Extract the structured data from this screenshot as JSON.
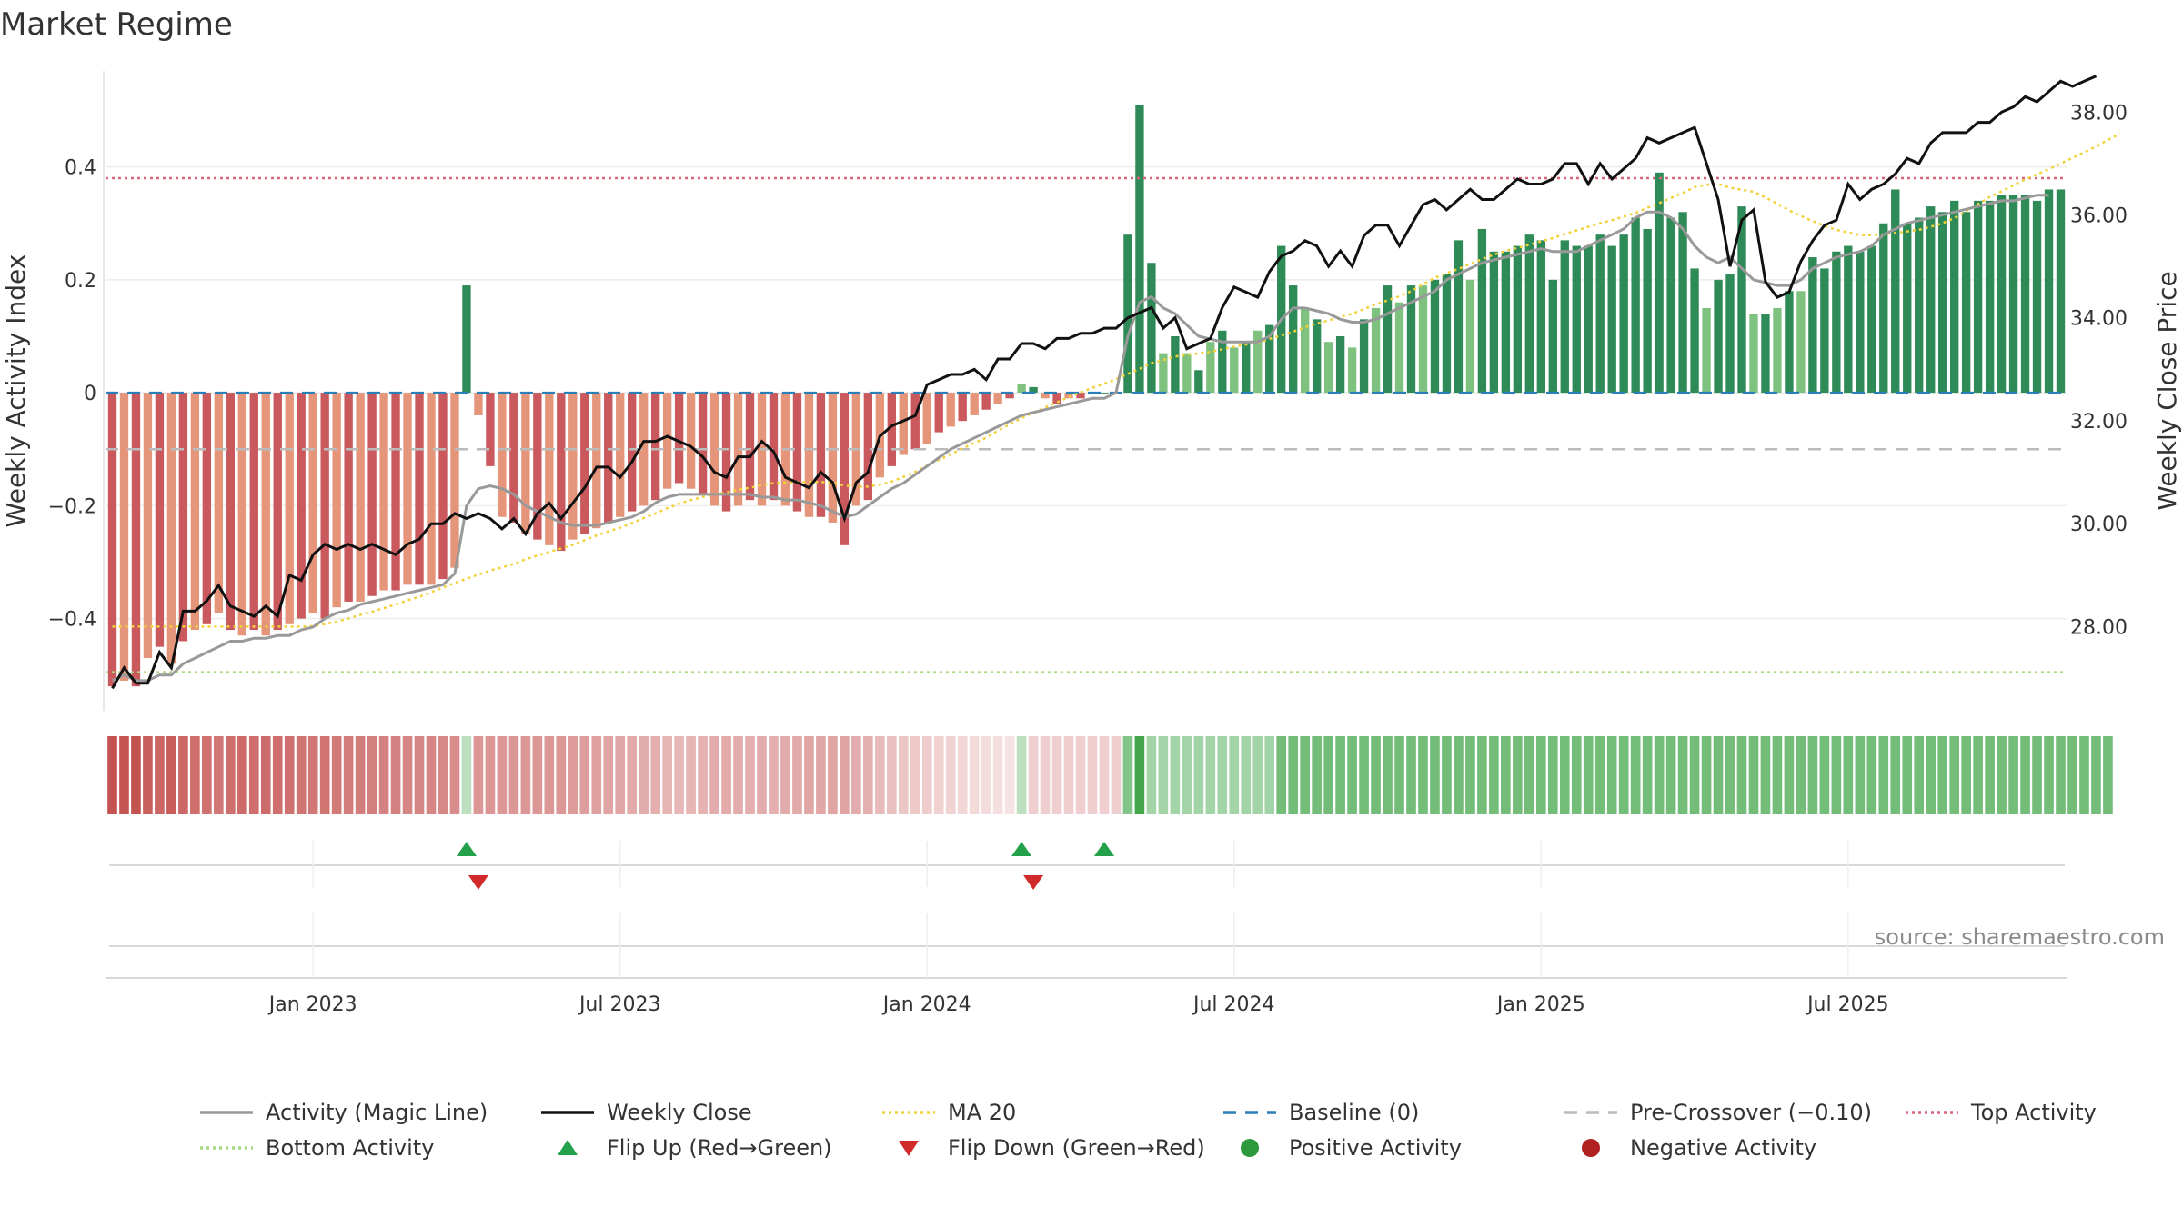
{
  "chart_data": {
    "type": "bar",
    "title": "Market Regime",
    "ylabel_left": "Weekly Activity Index",
    "ylabel_right": "Weekly Close Price",
    "source": "source: sharemaestro.com",
    "ylim_left": [
      -0.56,
      0.57
    ],
    "ylim_right": [
      26.4,
      38.8
    ],
    "left_ticks": [
      {
        "v": 0.4,
        "label": "0.4"
      },
      {
        "v": 0.2,
        "label": "0.2"
      },
      {
        "v": 0,
        "label": "0"
      },
      {
        "v": -0.2,
        "label": "−0.2"
      },
      {
        "v": -0.4,
        "label": "−0.4"
      }
    ],
    "right_ticks": [
      {
        "v": 38,
        "label": "38.00"
      },
      {
        "v": 36,
        "label": "36.00"
      },
      {
        "v": 34,
        "label": "34.00"
      },
      {
        "v": 32,
        "label": "32.00"
      },
      {
        "v": 30,
        "label": "30.00"
      },
      {
        "v": 28,
        "label": "28.00"
      }
    ],
    "x_ticks": [
      {
        "week": 17,
        "label": "Jan 2023"
      },
      {
        "week": 43,
        "label": "Jul 2023"
      },
      {
        "week": 69,
        "label": "Jan 2024"
      },
      {
        "week": 95,
        "label": "Jul 2024"
      },
      {
        "week": 121,
        "label": "Jan 2025"
      },
      {
        "week": 147,
        "label": "Jul 2025"
      }
    ],
    "reference_lines": {
      "baseline": 0,
      "pre_crossover": -0.1,
      "top_activity": 0.38,
      "bottom_activity": -0.495
    },
    "activity": [
      -0.52,
      -0.51,
      -0.52,
      -0.47,
      -0.45,
      -0.48,
      -0.44,
      -0.42,
      -0.41,
      -0.39,
      -0.42,
      -0.43,
      -0.42,
      -0.43,
      -0.42,
      -0.41,
      -0.4,
      -0.39,
      -0.4,
      -0.38,
      -0.37,
      -0.37,
      -0.36,
      -0.35,
      -0.35,
      -0.34,
      -0.34,
      -0.34,
      -0.33,
      -0.31,
      0.19,
      -0.04,
      -0.13,
      -0.22,
      -0.23,
      -0.25,
      -0.26,
      -0.27,
      -0.28,
      -0.26,
      -0.25,
      -0.24,
      -0.23,
      -0.22,
      -0.21,
      -0.2,
      -0.19,
      -0.17,
      -0.16,
      -0.17,
      -0.18,
      -0.2,
      -0.21,
      -0.2,
      -0.19,
      -0.2,
      -0.19,
      -0.2,
      -0.21,
      -0.22,
      -0.22,
      -0.23,
      -0.27,
      -0.2,
      -0.19,
      -0.15,
      -0.13,
      -0.11,
      -0.1,
      -0.09,
      -0.07,
      -0.06,
      -0.05,
      -0.04,
      -0.03,
      -0.02,
      -0.01,
      0.015,
      0.01,
      -0.01,
      -0.02,
      -0.01,
      -0.01,
      0.0,
      0.0,
      0.0,
      0.28,
      0.51,
      0.23,
      0.07,
      0.1,
      0.07,
      0.04,
      0.09,
      0.11,
      0.08,
      0.09,
      0.11,
      0.12,
      0.26,
      0.19,
      0.15,
      0.13,
      0.09,
      0.1,
      0.08,
      0.13,
      0.15,
      0.19,
      0.16,
      0.19,
      0.19,
      0.2,
      0.21,
      0.27,
      0.2,
      0.29,
      0.25,
      0.25,
      0.26,
      0.28,
      0.27,
      0.2,
      0.27,
      0.26,
      0.26,
      0.28,
      0.26,
      0.28,
      0.31,
      0.29,
      0.39,
      0.31,
      0.32,
      0.22,
      0.15,
      0.2,
      0.21,
      0.33,
      0.14,
      0.14,
      0.15,
      0.18,
      0.18,
      0.24,
      0.22,
      0.25,
      0.26,
      0.25,
      0.26,
      0.3,
      0.36,
      0.3,
      0.31,
      0.33,
      0.32,
      0.34,
      0.32,
      0.34,
      0.34,
      0.35,
      0.35,
      0.35,
      0.34,
      0.36,
      0.36
    ],
    "magic_line": [
      -0.51,
      -0.5,
      -0.51,
      -0.51,
      -0.5,
      -0.5,
      -0.48,
      -0.47,
      -0.46,
      -0.45,
      -0.44,
      -0.44,
      -0.435,
      -0.435,
      -0.43,
      -0.43,
      -0.42,
      -0.415,
      -0.4,
      -0.39,
      -0.385,
      -0.375,
      -0.37,
      -0.365,
      -0.36,
      -0.355,
      -0.35,
      -0.345,
      -0.34,
      -0.32,
      -0.2,
      -0.17,
      -0.165,
      -0.17,
      -0.18,
      -0.2,
      -0.21,
      -0.22,
      -0.23,
      -0.235,
      -0.235,
      -0.235,
      -0.23,
      -0.225,
      -0.22,
      -0.21,
      -0.195,
      -0.185,
      -0.18,
      -0.18,
      -0.18,
      -0.18,
      -0.18,
      -0.18,
      -0.18,
      -0.185,
      -0.185,
      -0.19,
      -0.19,
      -0.195,
      -0.2,
      -0.21,
      -0.22,
      -0.215,
      -0.2,
      -0.185,
      -0.17,
      -0.16,
      -0.145,
      -0.13,
      -0.115,
      -0.1,
      -0.09,
      -0.08,
      -0.07,
      -0.06,
      -0.05,
      -0.04,
      -0.035,
      -0.03,
      -0.025,
      -0.02,
      -0.015,
      -0.01,
      -0.01,
      -0.0,
      0.1,
      0.16,
      0.17,
      0.15,
      0.14,
      0.12,
      0.1,
      0.095,
      0.09,
      0.09,
      0.09,
      0.09,
      0.1,
      0.13,
      0.15,
      0.15,
      0.145,
      0.14,
      0.13,
      0.125,
      0.125,
      0.13,
      0.14,
      0.15,
      0.16,
      0.17,
      0.18,
      0.2,
      0.21,
      0.22,
      0.23,
      0.235,
      0.24,
      0.245,
      0.25,
      0.255,
      0.25,
      0.25,
      0.25,
      0.26,
      0.27,
      0.28,
      0.29,
      0.31,
      0.32,
      0.32,
      0.31,
      0.29,
      0.26,
      0.24,
      0.23,
      0.24,
      0.22,
      0.2,
      0.195,
      0.19,
      0.19,
      0.2,
      0.22,
      0.23,
      0.24,
      0.245,
      0.25,
      0.26,
      0.28,
      0.29,
      0.3,
      0.305,
      0.31,
      0.315,
      0.32,
      0.325,
      0.33,
      0.335,
      0.34,
      0.34,
      0.345,
      0.35,
      0.35
    ],
    "weekly_close": [
      26.8,
      27.2,
      26.9,
      26.9,
      27.5,
      27.2,
      28.3,
      28.3,
      28.5,
      28.8,
      28.4,
      28.3,
      28.2,
      28.4,
      28.2,
      29.0,
      28.9,
      29.4,
      29.6,
      29.5,
      29.6,
      29.5,
      29.6,
      29.5,
      29.4,
      29.6,
      29.7,
      30.0,
      30.0,
      30.2,
      30.1,
      30.2,
      30.1,
      29.9,
      30.1,
      29.8,
      30.2,
      30.4,
      30.1,
      30.4,
      30.7,
      31.1,
      31.1,
      30.9,
      31.2,
      31.6,
      31.6,
      31.7,
      31.6,
      31.5,
      31.3,
      31.0,
      30.9,
      31.3,
      31.3,
      31.6,
      31.4,
      30.9,
      30.8,
      30.7,
      31.0,
      30.8,
      30.1,
      30.8,
      31.0,
      31.7,
      31.9,
      32.0,
      32.1,
      32.7,
      32.8,
      32.9,
      32.9,
      33.0,
      32.8,
      33.2,
      33.2,
      33.5,
      33.5,
      33.4,
      33.6,
      33.6,
      33.7,
      33.7,
      33.8,
      33.8,
      34.0,
      34.1,
      34.2,
      33.8,
      34.0,
      33.4,
      33.5,
      33.6,
      34.2,
      34.6,
      34.5,
      34.4,
      34.9,
      35.2,
      35.3,
      35.5,
      35.4,
      35.0,
      35.3,
      35.0,
      35.6,
      35.8,
      35.8,
      35.4,
      35.8,
      36.2,
      36.3,
      36.1,
      36.3,
      36.5,
      36.3,
      36.3,
      36.5,
      36.7,
      36.6,
      36.6,
      36.7,
      37.0,
      37.0,
      36.6,
      37.0,
      36.7,
      36.9,
      37.1,
      37.5,
      37.4,
      37.5,
      37.6,
      37.7,
      37.0,
      36.3,
      35.0,
      35.9,
      36.1,
      34.7,
      34.4,
      34.5,
      35.1,
      35.5,
      35.8,
      35.9,
      36.6,
      36.3,
      36.5,
      36.6,
      36.8,
      37.1,
      37.0,
      37.4,
      37.6,
      37.6,
      37.6,
      37.8,
      37.8,
      38.0,
      38.1,
      38.3,
      38.2,
      38.4,
      38.6,
      38.5,
      38.6,
      38.7
    ],
    "ma20": [
      28.0,
      28.0,
      28.0,
      28.0,
      28.0,
      28.0,
      28.0,
      28.0,
      28.0,
      28.0,
      28.0,
      28.0,
      28.0,
      28.0,
      28.0,
      28.0,
      28.0,
      28.01,
      28.05,
      28.1,
      28.16,
      28.23,
      28.29,
      28.36,
      28.43,
      28.51,
      28.58,
      28.67,
      28.76,
      28.85,
      28.93,
      29.01,
      29.09,
      29.15,
      29.22,
      29.31,
      29.38,
      29.45,
      29.52,
      29.59,
      29.68,
      29.77,
      29.85,
      29.92,
      30.01,
      30.11,
      30.2,
      30.3,
      30.39,
      30.46,
      30.52,
      30.57,
      30.61,
      30.66,
      30.7,
      30.75,
      30.79,
      30.8,
      30.81,
      30.81,
      30.81,
      30.8,
      30.74,
      30.72,
      30.72,
      30.76,
      30.82,
      30.91,
      31.01,
      31.13,
      31.24,
      31.35,
      31.46,
      31.57,
      31.67,
      31.81,
      31.93,
      32.05,
      32.16,
      32.26,
      32.36,
      32.46,
      32.55,
      32.64,
      32.72,
      32.81,
      32.91,
      33.01,
      33.12,
      33.18,
      33.25,
      33.28,
      33.31,
      33.34,
      33.39,
      33.44,
      33.48,
      33.52,
      33.59,
      33.66,
      33.73,
      33.82,
      33.89,
      33.95,
      34.02,
      34.08,
      34.17,
      34.26,
      34.34,
      34.42,
      34.52,
      34.65,
      34.78,
      34.87,
      34.95,
      35.05,
      35.14,
      35.23,
      35.3,
      35.36,
      35.42,
      35.49,
      35.55,
      35.63,
      35.7,
      35.77,
      35.84,
      35.9,
      35.97,
      36.04,
      36.14,
      36.23,
      36.33,
      36.43,
      36.54,
      36.59,
      36.6,
      36.53,
      36.49,
      36.45,
      36.34,
      36.22,
      36.09,
      35.98,
      35.88,
      35.79,
      35.71,
      35.66,
      35.61,
      35.61,
      35.62,
      35.65,
      35.68,
      35.71,
      35.77,
      35.84,
      35.94,
      36.07,
      36.21,
      36.35,
      36.46,
      36.58,
      36.69,
      36.79,
      36.89,
      37.0,
      37.11,
      37.22,
      37.33,
      37.46,
      37.58
    ]
  },
  "heat_strip": {
    "series": [
      -0.52,
      -0.51,
      -0.52,
      -0.47,
      -0.45,
      -0.48,
      -0.44,
      -0.42,
      -0.41,
      -0.39,
      -0.42,
      -0.43,
      -0.42,
      -0.43,
      -0.42,
      -0.41,
      -0.4,
      -0.39,
      -0.4,
      -0.38,
      -0.37,
      -0.37,
      -0.36,
      -0.35,
      -0.35,
      -0.34,
      -0.34,
      -0.34,
      -0.33,
      -0.31,
      0.12,
      -0.28,
      -0.28,
      -0.28,
      -0.28,
      -0.28,
      -0.28,
      -0.28,
      -0.28,
      -0.26,
      -0.25,
      -0.24,
      -0.23,
      -0.22,
      -0.21,
      -0.2,
      -0.19,
      -0.17,
      -0.16,
      -0.17,
      -0.18,
      -0.2,
      -0.21,
      -0.2,
      -0.19,
      -0.2,
      -0.19,
      -0.2,
      -0.21,
      -0.22,
      -0.22,
      -0.23,
      -0.23,
      -0.2,
      -0.19,
      -0.15,
      -0.13,
      -0.11,
      -0.1,
      -0.09,
      -0.07,
      -0.06,
      -0.05,
      -0.04,
      -0.03,
      -0.02,
      -0.01,
      0.12,
      -0.08,
      -0.08,
      -0.08,
      -0.08,
      -0.08,
      -0.08,
      -0.08,
      -0.08,
      0.3,
      0.5,
      0.2,
      0.2,
      0.2,
      0.2,
      0.2,
      0.2,
      0.2,
      0.2,
      0.2,
      0.2,
      0.2,
      0.35,
      0.35,
      0.35,
      0.35,
      0.35,
      0.35,
      0.35,
      0.35,
      0.35,
      0.35,
      0.35,
      0.35,
      0.35,
      0.35,
      0.35,
      0.35,
      0.35,
      0.35,
      0.35,
      0.35,
      0.35,
      0.35,
      0.35,
      0.35,
      0.35,
      0.35,
      0.35,
      0.35,
      0.35,
      0.35,
      0.35,
      0.35,
      0.35,
      0.35,
      0.35,
      0.35,
      0.35,
      0.35,
      0.35,
      0.35,
      0.35,
      0.35,
      0.35,
      0.35,
      0.35,
      0.35,
      0.35,
      0.35,
      0.35,
      0.35,
      0.35,
      0.35,
      0.35,
      0.35,
      0.35,
      0.35,
      0.35,
      0.35,
      0.35,
      0.35,
      0.35,
      0.35,
      0.35,
      0.35,
      0.35,
      0.35,
      0.35,
      0.35,
      0.35,
      0.35,
      0.35
    ],
    "range": [
      -0.52,
      0.52
    ]
  },
  "signals": {
    "flip_up": [
      30,
      77,
      84
    ],
    "flip_down": [
      31,
      78
    ]
  },
  "colors": {
    "neg_dark": "#c9595d",
    "neg_light": "#e5967a",
    "pos_dark": "#2e8b57",
    "pos_light": "#7fc27f",
    "magic_line": "#999999",
    "weekly_close": "#111111",
    "ma20": "#f1d23a",
    "baseline": "#2b7fb8",
    "pre_crossover": "#bbbbbb",
    "top_activity": "#d9667a",
    "bottom_activity": "#a8d880",
    "flip_up": "#22a04a",
    "flip_down": "#d02a2a",
    "positive_dot": "#2c9a3c",
    "negative_dot": "#b02020"
  },
  "legend": [
    {
      "label": "Activity (Magic Line)",
      "kind": "line",
      "color": "#999999",
      "dash": ""
    },
    {
      "label": "Weekly Close",
      "kind": "line",
      "color": "#111111",
      "dash": ""
    },
    {
      "label": "MA 20",
      "kind": "line",
      "color": "#f1d23a",
      "dash": "3,4"
    },
    {
      "label": "Baseline (0)",
      "kind": "line",
      "color": "#2b7fb8",
      "dash": "14,10"
    },
    {
      "label": "Pre-Crossover (−0.10)",
      "kind": "line",
      "color": "#bbbbbb",
      "dash": "14,10"
    },
    {
      "label": "Top Activity",
      "kind": "line",
      "color": "#d9667a",
      "dash": "3,4"
    },
    {
      "label": "Bottom Activity",
      "kind": "line",
      "color": "#a8d880",
      "dash": "3,4"
    },
    {
      "label": "Flip Up (Red→Green)",
      "kind": "up",
      "color": "#22a04a",
      "dash": ""
    },
    {
      "label": "Flip Down (Green→Red)",
      "kind": "down",
      "color": "#d02a2a",
      "dash": ""
    },
    {
      "label": "Positive Activity",
      "kind": "dot",
      "color": "#2c9a3c",
      "dash": ""
    },
    {
      "label": "Negative Activity",
      "kind": "dot",
      "color": "#b02020",
      "dash": ""
    }
  ]
}
